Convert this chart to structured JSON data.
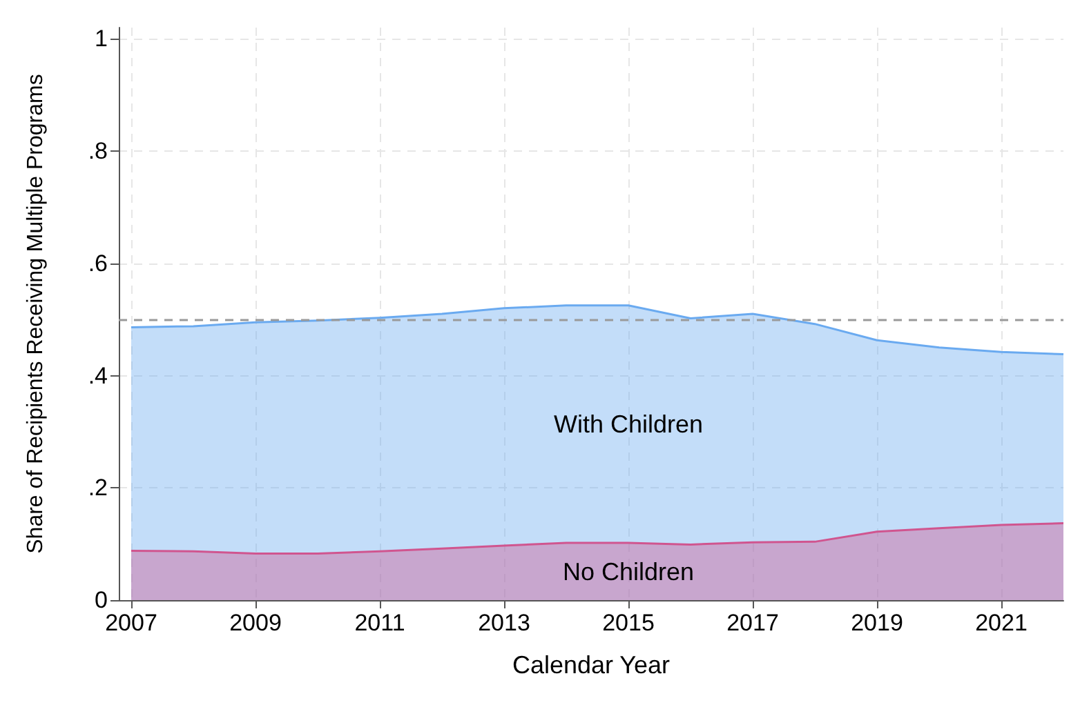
{
  "chart_data": {
    "type": "area",
    "xlabel": "Calendar Year",
    "ylabel": "Share of Recipients Receiving Multiple Programs",
    "x": [
      2007,
      2008,
      2009,
      2010,
      2011,
      2012,
      2013,
      2014,
      2015,
      2016,
      2017,
      2018,
      2019,
      2020,
      2021,
      2022
    ],
    "series": [
      {
        "name": "With Children",
        "color": "#6aaaf0",
        "values": [
          0.486,
          0.488,
          0.495,
          0.498,
          0.503,
          0.51,
          0.52,
          0.525,
          0.525,
          0.502,
          0.51,
          0.492,
          0.463,
          0.45,
          0.442,
          0.438
        ]
      },
      {
        "name": "No Children",
        "color": "#d0558f",
        "values": [
          0.088,
          0.087,
          0.083,
          0.083,
          0.087,
          0.092,
          0.097,
          0.102,
          0.102,
          0.099,
          0.103,
          0.104,
          0.122,
          0.128,
          0.134,
          0.137
        ]
      }
    ],
    "xlim": [
      2006.8,
      2022
    ],
    "xticks": [
      2007,
      2009,
      2011,
      2013,
      2015,
      2017,
      2019,
      2021
    ],
    "ylim": [
      0,
      1.02
    ],
    "yticks": [
      0,
      {
        "value": 0.2,
        "label": ".2"
      },
      {
        "value": 0.4,
        "label": ".4"
      },
      {
        "value": 0.6,
        "label": ".6"
      },
      {
        "value": 0.8,
        "label": ".8"
      },
      1
    ],
    "ref_lines": [
      {
        "axis": "y",
        "value": 0.5,
        "color": "#9a9a9a",
        "line_style": "dashed"
      }
    ],
    "grid": true,
    "legend": false
  }
}
